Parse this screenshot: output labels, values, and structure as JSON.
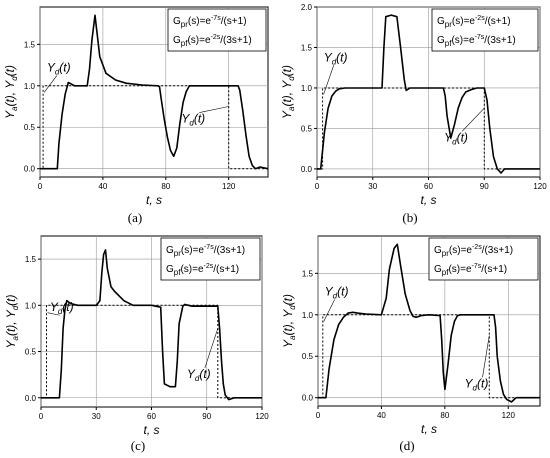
{
  "chart_data": [
    {
      "id": "a",
      "type": "line",
      "caption": "(a)",
      "xlabel": "t, s",
      "ylabel": "Ya(t), Yd(t)",
      "xlim": [
        0,
        145
      ],
      "ylim": [
        -0.1,
        1.95
      ],
      "xticks": [
        "0",
        "40",
        "80",
        "120"
      ],
      "yticks": [
        "0.0",
        "0.5",
        "1.0",
        "1.5"
      ],
      "legend": [
        "Gpr(s)=e^-7s/(s+1)",
        "Gpf(s)=e^-2s/(3s+1)"
      ],
      "annotations": [
        "Yd(t)",
        "Yd(t)"
      ],
      "grid": true,
      "series": [
        {
          "style": "solid",
          "x": [
            0,
            11,
            12,
            14,
            16,
            18,
            20,
            22,
            24,
            26,
            30,
            31.5,
            33,
            35,
            38,
            42,
            48,
            55,
            65,
            75,
            76,
            77,
            79,
            81,
            83,
            85,
            87,
            89,
            91,
            93,
            95,
            97,
            100,
            105,
            113,
            120,
            126,
            127,
            129,
            131,
            133,
            135,
            137,
            140,
            145
          ],
          "y": [
            0,
            0,
            0.3,
            0.65,
            0.9,
            1.04,
            1.02,
            1.0,
            1.0,
            1.0,
            1.0,
            1.2,
            1.55,
            1.85,
            1.35,
            1.15,
            1.07,
            1.03,
            1.01,
            1.0,
            0.99,
            0.85,
            0.6,
            0.38,
            0.22,
            0.15,
            0.25,
            0.55,
            0.8,
            0.93,
            1.0,
            1.0,
            1.0,
            1.0,
            1.0,
            1.0,
            1.0,
            0.95,
            0.7,
            0.4,
            0.15,
            0.04,
            0.0,
            0.02,
            0.0
          ]
        },
        {
          "style": "dashed",
          "x": [
            0,
            2,
            2,
            120,
            120,
            145
          ],
          "y": [
            0,
            0,
            1,
            1,
            0,
            0
          ]
        }
      ]
    },
    {
      "id": "b",
      "type": "line",
      "caption": "(b)",
      "xlabel": "t, s",
      "ylabel": "Ya(t), Yd(t)",
      "xlim": [
        0,
        120
      ],
      "ylim": [
        -0.1,
        2.0
      ],
      "xticks": [
        "0",
        "30",
        "60",
        "90",
        "120"
      ],
      "yticks": [
        "0.0",
        "0.5",
        "1.0",
        "1.5",
        "2.0"
      ],
      "legend": [
        "Gpr(s)=e^-2s/(s+1)",
        "Gpf(s)=e^-7s/(3s+1)"
      ],
      "annotations": [
        "Yd(t)",
        "Yd(t)"
      ],
      "grid": true,
      "series": [
        {
          "style": "solid",
          "x": [
            0,
            2,
            4,
            6,
            8,
            10,
            12,
            15,
            20,
            30,
            35,
            36,
            37,
            40,
            43,
            45,
            47,
            48,
            50,
            55,
            60,
            68,
            69,
            70,
            72,
            74,
            76,
            78,
            80,
            83,
            86,
            90,
            91.5,
            93,
            95,
            97,
            99,
            101,
            105,
            110,
            120
          ],
          "y": [
            0,
            0,
            0.45,
            0.75,
            0.9,
            0.96,
            0.99,
            1.0,
            1.0,
            1.0,
            1.0,
            1.5,
            1.88,
            1.9,
            1.88,
            1.5,
            1.1,
            0.97,
            1.0,
            1.0,
            1.0,
            1.0,
            0.9,
            0.65,
            0.38,
            0.55,
            0.75,
            0.88,
            0.95,
            0.98,
            1.0,
            1.0,
            0.85,
            0.5,
            0.15,
            0.0,
            -0.05,
            0.0,
            0.0,
            0.0,
            0.0
          ]
        },
        {
          "style": "dashed",
          "x": [
            0,
            3,
            3,
            90,
            90,
            120
          ],
          "y": [
            0,
            0,
            1,
            1,
            0,
            0
          ]
        }
      ]
    },
    {
      "id": "c",
      "type": "line",
      "caption": "(c)",
      "xlabel": "t, s",
      "ylabel": "Ya(t), Yd(t)",
      "xlim": [
        0,
        120
      ],
      "ylim": [
        -0.1,
        1.75
      ],
      "xticks": [
        "0",
        "30",
        "60",
        "90",
        "120"
      ],
      "yticks": [
        "0.0",
        "0.5",
        "1.0",
        "1.5"
      ],
      "legend": [
        "Gpr(s)=e^-7s/(3s+1)",
        "Gpf(s)=e^-2s/(s+1)"
      ],
      "annotations": [
        "Yd(t)",
        "Yd(t)"
      ],
      "grid": true,
      "series": [
        {
          "style": "solid",
          "x": [
            0,
            10,
            11,
            12,
            13,
            14,
            16,
            20,
            25,
            30,
            32,
            33,
            34,
            35,
            36,
            38,
            40,
            45,
            50,
            60,
            65,
            66,
            67,
            70,
            73,
            74,
            75,
            77,
            78,
            80,
            82,
            85,
            90,
            96,
            97,
            98,
            99,
            100,
            102,
            105,
            110,
            120
          ],
          "y": [
            0,
            0,
            0.3,
            0.75,
            0.95,
            1.05,
            1.02,
            1.0,
            1.0,
            1.0,
            1.05,
            1.35,
            1.55,
            1.6,
            1.4,
            1.2,
            1.15,
            1.05,
            1.0,
            1.0,
            0.98,
            0.5,
            0.15,
            0.12,
            0.12,
            0.4,
            0.8,
            0.99,
            1.01,
            1.0,
            0.99,
            0.99,
            0.99,
            0.99,
            0.75,
            0.4,
            0.15,
            0.03,
            -0.02,
            0.0,
            0.0,
            0.0
          ]
        },
        {
          "style": "dashed",
          "x": [
            0,
            3,
            3,
            96,
            96,
            120
          ],
          "y": [
            0,
            0,
            1,
            1,
            0,
            0
          ]
        }
      ]
    },
    {
      "id": "d",
      "type": "line",
      "caption": "(d)",
      "xlabel": "t, s",
      "ylabel": "Ya(t), Yd(t)",
      "xlim": [
        0,
        140
      ],
      "ylim": [
        -0.1,
        1.95
      ],
      "xticks": [
        "0",
        "40",
        "80",
        "120"
      ],
      "yticks": [
        "0.0",
        "0.5",
        "1.0",
        "1.5"
      ],
      "legend": [
        "Gpr(s)=e^-2s/(3s+1)",
        "Gpf(s)=e^-7s/(s+1)"
      ],
      "annotations": [
        "Yd(t)",
        "Yd(t)"
      ],
      "grid": true,
      "series": [
        {
          "style": "solid",
          "x": [
            0,
            5,
            7,
            10,
            13,
            16,
            19,
            22,
            25,
            30,
            40,
            43,
            45,
            48,
            50,
            52,
            55,
            58,
            60,
            62,
            65,
            70,
            77,
            78,
            79,
            80,
            82,
            84,
            86,
            88,
            90,
            95,
            100,
            105,
            110,
            111,
            112,
            113,
            115,
            117,
            119,
            122,
            125,
            130,
            140
          ],
          "y": [
            0,
            0,
            0.35,
            0.7,
            0.88,
            0.97,
            1.02,
            1.03,
            1.02,
            1.01,
            1.0,
            1.2,
            1.55,
            1.8,
            1.85,
            1.6,
            1.25,
            1.05,
            0.98,
            0.97,
            0.99,
            1.0,
            0.99,
            0.7,
            0.3,
            0.1,
            0.4,
            0.75,
            0.92,
            0.99,
            1.0,
            1.0,
            1.0,
            1.0,
            1.0,
            1.0,
            0.85,
            0.5,
            0.2,
            0.04,
            -0.02,
            -0.05,
            0.0,
            0.0,
            0.0
          ]
        },
        {
          "style": "dashed",
          "x": [
            0,
            3,
            3,
            108,
            108,
            140
          ],
          "y": [
            0,
            0,
            1,
            1,
            0,
            0
          ]
        }
      ]
    }
  ]
}
